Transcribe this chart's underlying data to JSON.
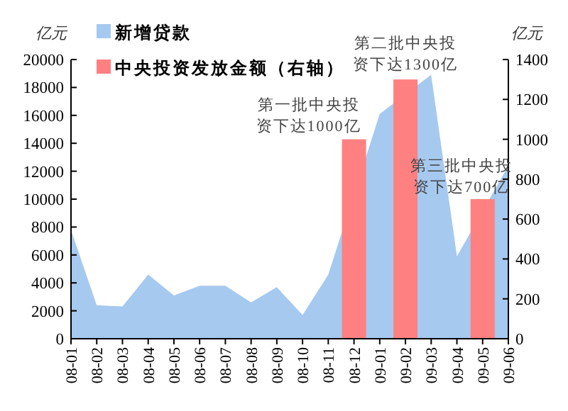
{
  "chart_data": {
    "type": "area",
    "categories": [
      "08-01",
      "08-02",
      "08-03",
      "08-04",
      "08-05",
      "08-06",
      "08-07",
      "08-08",
      "08-09",
      "08-10",
      "08-11",
      "08-12",
      "09-01",
      "09-02",
      "09-03",
      "09-04",
      "09-05",
      "09-06"
    ],
    "series": [
      {
        "name": "新增贷款",
        "color": "#a6c9ef",
        "values": [
          7800,
          2400,
          2300,
          4600,
          3100,
          3800,
          3800,
          2600,
          3700,
          1700,
          4600,
          null,
          16100,
          null,
          18900,
          5900,
          null,
          12400
        ]
      },
      {
        "name": "中央投资发放金额（右轴）",
        "type": "bar",
        "axis": "y2",
        "color": "#ff8080",
        "values": [
          null,
          null,
          null,
          null,
          null,
          null,
          null,
          null,
          null,
          null,
          null,
          1000,
          null,
          1300,
          null,
          null,
          700,
          null
        ]
      }
    ],
    "ylabel": "亿元",
    "y2label": "亿元",
    "ylim": [
      0,
      20000
    ],
    "yticks": [
      0,
      2000,
      4000,
      6000,
      8000,
      10000,
      12000,
      14000,
      16000,
      18000,
      20000
    ],
    "y2lim": [
      0,
      1400
    ],
    "y2ticks": [
      0,
      200,
      400,
      600,
      800,
      1000,
      1200,
      1400
    ],
    "annotations": [
      "第一批中央投资下达1000亿",
      "第二批中央投资下达1300亿",
      "第三批中央投资下达700亿"
    ],
    "legend": "top left"
  }
}
